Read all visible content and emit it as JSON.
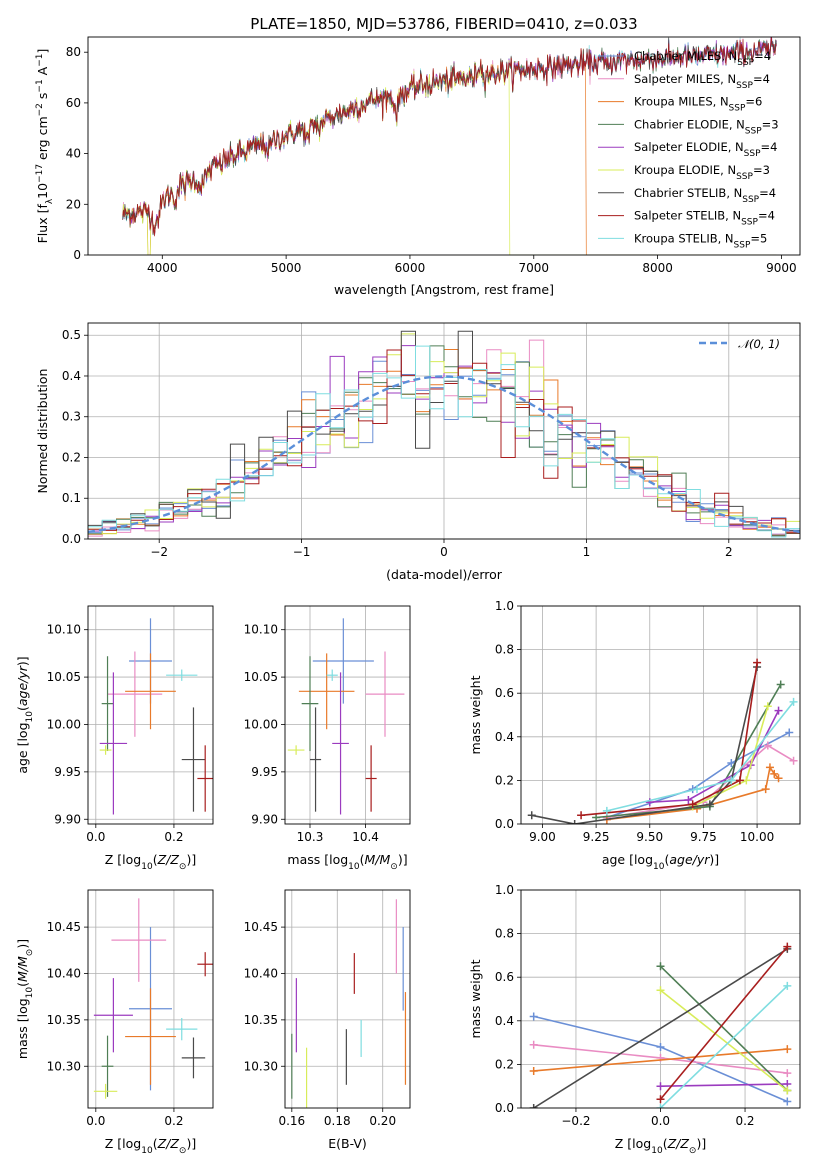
{
  "chart_data": [
    {
      "id": "spectrum",
      "type": "line",
      "title": "PLATE=1850, MJD=53786, FIBERID=0410, z=0.033",
      "xlabel": "wavelength [Angstrom, rest frame]",
      "ylabel": "Flux [f_λ10^-17 erg cm^-2 s^-1 A^-1]",
      "xlim": [
        3400,
        9150
      ],
      "ylim": [
        0,
        86
      ],
      "xticks": [
        4000,
        5000,
        6000,
        7000,
        8000,
        9000
      ],
      "yticks": [
        0,
        20,
        40,
        60,
        80
      ],
      "grid": false,
      "legend_placement": "top-right",
      "legend": [
        {
          "name": "Chabrier MILES, N_SSP=4",
          "color": "#6a8fd6"
        },
        {
          "name": "Salpeter MILES, N_SSP=4",
          "color": "#e98cc3"
        },
        {
          "name": "Kroupa MILES, N_SSP=6",
          "color": "#e87a2a"
        },
        {
          "name": "Chabrier ELODIE, N_SSP=3",
          "color": "#4f7e55"
        },
        {
          "name": "Salpeter ELODIE, N_SSP=4",
          "color": "#9b3bbf"
        },
        {
          "name": "Kroupa ELODIE, N_SSP=3",
          "color": "#d8ec5a"
        },
        {
          "name": "Chabrier STELIB, N_SSP=4",
          "color": "#4a4a4a"
        },
        {
          "name": "Salpeter STELIB, N_SSP=4",
          "color": "#a81e1e"
        },
        {
          "name": "Kroupa STELIB, N_SSP=5",
          "color": "#7fdde0"
        }
      ],
      "continuum": {
        "x": [
          3650,
          3900,
          4100,
          4300,
          4500,
          4700,
          4900,
          5100,
          5300,
          5500,
          5700,
          5900,
          6100,
          6300,
          6500,
          6700,
          6900,
          7100,
          7300,
          7500,
          7700,
          7900,
          8100,
          8300,
          8500,
          8700,
          8900
        ],
        "y": [
          16,
          17,
          26,
          31,
          37,
          42,
          45,
          49,
          53,
          57,
          61,
          63,
          67,
          69,
          70,
          72,
          73,
          74,
          75,
          76,
          77,
          77,
          78,
          78,
          79,
          80,
          81
        ]
      },
      "features": [
        {
          "series": "Kroupa ELODIE, N_SSP=3",
          "x_from": 3900,
          "x_to": 6800,
          "note": "spectrum ends at 6800 with drop to 0"
        },
        {
          "series": "Kroupa MILES, N_SSP=6",
          "x_from": 3900,
          "x_to": 7420,
          "note": "spectrum ends at 7420 with drop to 0"
        }
      ]
    },
    {
      "id": "residuals",
      "type": "step",
      "xlabel": "(data-model)/error",
      "ylabel": "Normed distribution",
      "xlim": [
        -2.5,
        2.5
      ],
      "ylim": [
        0,
        0.53
      ],
      "xticks": [
        -2,
        -1,
        0,
        1,
        2
      ],
      "yticks": [
        0.0,
        0.1,
        0.2,
        0.3,
        0.4,
        0.5
      ],
      "grid": true,
      "legend_placement": "top-right",
      "legend": [
        {
          "name": "𝒩(0, 1)",
          "color": "#5b8fd9"
        }
      ],
      "bin_width": 0.1,
      "model": "standard normal"
    },
    {
      "id": "age_vs_Z",
      "type": "errorbar",
      "xlabel": "Z [log10(Z/Z☉)]",
      "ylabel": "age  [log10(age/yr)]",
      "xlim": [
        -0.02,
        0.3
      ],
      "ylim": [
        9.895,
        10.125
      ],
      "xticks": [
        0.0,
        0.2
      ],
      "yticks": [
        9.9,
        9.95,
        10.0,
        10.05,
        10.1
      ],
      "grid": true,
      "points": [
        {
          "color": "#6a8fd6",
          "x": 0.14,
          "xerr": 0.055,
          "y": 10.067,
          "yerr": 0.045
        },
        {
          "color": "#e98cc3",
          "x": 0.1,
          "xerr": 0.07,
          "y": 10.032,
          "yerr": 0.045
        },
        {
          "color": "#e87a2a",
          "x": 0.14,
          "xerr": 0.065,
          "y": 10.035,
          "yerr": 0.04
        },
        {
          "color": "#4f7e55",
          "x": 0.03,
          "xerr": 0.015,
          "y": 10.022,
          "yerr": 0.05
        },
        {
          "color": "#9b3bbf",
          "x": 0.045,
          "xerr": 0.035,
          "y": 9.98,
          "yerr": 0.075
        },
        {
          "color": "#d8ec5a",
          "x": 0.025,
          "xerr": 0.015,
          "y": 9.973,
          "yerr": 0.005
        },
        {
          "color": "#4a4a4a",
          "x": 0.25,
          "xerr": 0.03,
          "y": 9.963,
          "yerr": 0.055
        },
        {
          "color": "#a81e1e",
          "x": 0.28,
          "xerr": 0.02,
          "y": 9.943,
          "yerr": 0.035
        },
        {
          "color": "#7fdde0",
          "x": 0.22,
          "xerr": 0.04,
          "y": 10.052,
          "yerr": 0.006
        }
      ]
    },
    {
      "id": "age_vs_mass",
      "type": "errorbar",
      "xlabel": "mass [log10(M/M☉)]",
      "ylabel": "",
      "xlim": [
        10.255,
        10.48
      ],
      "ylim": [
        9.895,
        10.125
      ],
      "xticks": [
        10.3,
        10.4
      ],
      "yticks": [
        9.9,
        9.95,
        10.0,
        10.05,
        10.1
      ],
      "grid": true,
      "points": [
        {
          "color": "#6a8fd6",
          "x": 10.36,
          "xerr": 0.055,
          "y": 10.067,
          "yerr": 0.045
        },
        {
          "color": "#e98cc3",
          "x": 10.435,
          "xerr": 0.035,
          "y": 10.032,
          "yerr": 0.045
        },
        {
          "color": "#e87a2a",
          "x": 10.33,
          "xerr": 0.05,
          "y": 10.035,
          "yerr": 0.04
        },
        {
          "color": "#4f7e55",
          "x": 10.3,
          "xerr": 0.015,
          "y": 10.022,
          "yerr": 0.05
        },
        {
          "color": "#9b3bbf",
          "x": 10.355,
          "xerr": 0.015,
          "y": 9.98,
          "yerr": 0.075
        },
        {
          "color": "#d8ec5a",
          "x": 10.275,
          "xerr": 0.015,
          "y": 9.973,
          "yerr": 0.005
        },
        {
          "color": "#4a4a4a",
          "x": 10.31,
          "xerr": 0.01,
          "y": 9.963,
          "yerr": 0.055
        },
        {
          "color": "#a81e1e",
          "x": 10.41,
          "xerr": 0.01,
          "y": 9.943,
          "yerr": 0.035
        },
        {
          "color": "#7fdde0",
          "x": 10.34,
          "xerr": 0.01,
          "y": 10.052,
          "yerr": 0.006
        }
      ]
    },
    {
      "id": "weight_vs_age",
      "type": "line",
      "xlabel": "age  [log10(age/yr)]",
      "ylabel": "mass weight",
      "xlim": [
        8.9,
        10.2
      ],
      "ylim": [
        0,
        1.0
      ],
      "xticks": [
        9.0,
        9.25,
        9.5,
        9.75,
        10.0
      ],
      "yticks": [
        0.0,
        0.2,
        0.4,
        0.6,
        0.8,
        1.0
      ],
      "grid": true,
      "series": [
        {
          "color": "#6a8fd6",
          "x": [
            9.3,
            9.7,
            9.88,
            10.15
          ],
          "y": [
            0.03,
            0.16,
            0.28,
            0.42
          ]
        },
        {
          "color": "#e98cc3",
          "x": [
            9.3,
            9.75,
            10.05,
            10.17
          ],
          "y": [
            0.03,
            0.1,
            0.36,
            0.29
          ]
        },
        {
          "color": "#e87a2a",
          "x": [
            9.3,
            9.72,
            10.04,
            10.06,
            10.08,
            10.1
          ],
          "y": [
            0.02,
            0.07,
            0.16,
            0.26,
            0.23,
            0.21
          ]
        },
        {
          "color": "#4f7e55",
          "x": [
            9.25,
            9.78,
            10.11
          ],
          "y": [
            0.03,
            0.08,
            0.64
          ]
        },
        {
          "color": "#9b3bbf",
          "x": [
            9.5,
            9.68,
            9.97,
            10.1
          ],
          "y": [
            0.1,
            0.11,
            0.27,
            0.52
          ]
        },
        {
          "color": "#d8ec5a",
          "x": [
            9.7,
            9.95,
            10.05
          ],
          "y": [
            0.08,
            0.2,
            0.54
          ]
        },
        {
          "color": "#4a4a4a",
          "x": [
            8.95,
            9.15,
            9.78,
            9.88,
            10.0
          ],
          "y": [
            0.04,
            0.0,
            0.09,
            0.2,
            0.72
          ]
        },
        {
          "color": "#a81e1e",
          "x": [
            9.18,
            9.7,
            9.92,
            10.0
          ],
          "y": [
            0.04,
            0.09,
            0.2,
            0.74
          ]
        },
        {
          "color": "#7fdde0",
          "x": [
            9.3,
            9.72,
            9.88,
            10.17
          ],
          "y": [
            0.06,
            0.16,
            0.2,
            0.56
          ]
        }
      ]
    },
    {
      "id": "mass_vs_Z",
      "type": "errorbar",
      "xlabel": "Z [log10(Z/Z☉)]",
      "ylabel": "mass [log10(M/M☉)]",
      "xlim": [
        -0.02,
        0.3
      ],
      "ylim": [
        10.255,
        10.49
      ],
      "xticks": [
        0.0,
        0.2
      ],
      "yticks": [
        10.3,
        10.35,
        10.4,
        10.45
      ],
      "grid": true,
      "points": [
        {
          "color": "#6a8fd6",
          "x": 0.14,
          "xerr": 0.055,
          "y": 10.362,
          "yerr": 0.088
        },
        {
          "color": "#e98cc3",
          "x": 0.11,
          "xerr": 0.07,
          "y": 10.436,
          "yerr": 0.045
        },
        {
          "color": "#e87a2a",
          "x": 0.14,
          "xerr": 0.065,
          "y": 10.332,
          "yerr": 0.052
        },
        {
          "color": "#4f7e55",
          "x": 0.03,
          "xerr": 0.015,
          "y": 10.3,
          "yerr": 0.033
        },
        {
          "color": "#9b3bbf",
          "x": 0.045,
          "xerr": 0.05,
          "y": 10.355,
          "yerr": 0.04
        },
        {
          "color": "#d8ec5a",
          "x": 0.025,
          "xerr": 0.03,
          "y": 10.273,
          "yerr": 0.008
        },
        {
          "color": "#4a4a4a",
          "x": 0.25,
          "xerr": 0.03,
          "y": 10.309,
          "yerr": 0.022
        },
        {
          "color": "#a81e1e",
          "x": 0.28,
          "xerr": 0.02,
          "y": 10.41,
          "yerr": 0.013
        },
        {
          "color": "#7fdde0",
          "x": 0.22,
          "xerr": 0.04,
          "y": 10.34,
          "yerr": 0.012
        }
      ]
    },
    {
      "id": "mass_vs_EBV",
      "type": "errorbar",
      "xlabel": "E(B-V)",
      "ylabel": "",
      "xlim": [
        0.157,
        0.212
      ],
      "ylim": [
        10.255,
        10.49
      ],
      "xticks": [
        0.16,
        0.18,
        0.2
      ],
      "yticks": [
        10.3,
        10.35,
        10.4,
        10.45
      ],
      "grid": true,
      "points": [
        {
          "color": "#6a8fd6",
          "x": 0.209,
          "y": 10.405,
          "yerr": 0.045
        },
        {
          "color": "#e98cc3",
          "x": 0.206,
          "y": 10.44,
          "yerr": 0.04
        },
        {
          "color": "#e87a2a",
          "x": 0.21,
          "y": 10.33,
          "yerr": 0.05
        },
        {
          "color": "#4f7e55",
          "x": 0.16,
          "y": 10.3,
          "yerr": 0.035
        },
        {
          "color": "#9b3bbf",
          "x": 0.162,
          "y": 10.355,
          "yerr": 0.04
        },
        {
          "color": "#d8ec5a",
          "x": 0.1665,
          "y": 10.27,
          "yerr": 0.05
        },
        {
          "color": "#4a4a4a",
          "x": 0.184,
          "y": 10.31,
          "yerr": 0.03
        },
        {
          "color": "#a81e1e",
          "x": 0.1875,
          "y": 10.4,
          "yerr": 0.022
        },
        {
          "color": "#7fdde0",
          "x": 0.1905,
          "y": 10.33,
          "yerr": 0.02
        }
      ]
    },
    {
      "id": "weight_vs_Z",
      "type": "line",
      "xlabel": "Z [log10(Z/Z☉)]",
      "ylabel": "mass weight",
      "xlim": [
        -0.33,
        0.33
      ],
      "ylim": [
        0,
        1.0
      ],
      "xticks": [
        -0.2,
        0.0,
        0.2
      ],
      "yticks": [
        0.0,
        0.2,
        0.4,
        0.6,
        0.8,
        1.0
      ],
      "grid": true,
      "series": [
        {
          "color": "#6a8fd6",
          "x": [
            -0.3,
            0.0,
            0.3
          ],
          "y": [
            0.42,
            0.28,
            0.03
          ]
        },
        {
          "color": "#e98cc3",
          "x": [
            -0.3,
            0.0,
            0.3
          ],
          "y": [
            0.29,
            0.23,
            0.16
          ]
        },
        {
          "color": "#e87a2a",
          "x": [
            -0.3,
            0.3
          ],
          "y": [
            0.17,
            0.27
          ]
        },
        {
          "color": "#4f7e55",
          "x": [
            0.0,
            0.3
          ],
          "y": [
            0.65,
            0.08
          ]
        },
        {
          "color": "#9b3bbf",
          "x": [
            0.0,
            0.3
          ],
          "y": [
            0.1,
            0.11
          ]
        },
        {
          "color": "#d8ec5a",
          "x": [
            0.0,
            0.3
          ],
          "y": [
            0.54,
            0.08
          ]
        },
        {
          "color": "#4a4a4a",
          "x": [
            -0.3,
            0.3
          ],
          "y": [
            0.0,
            0.73
          ]
        },
        {
          "color": "#a81e1e",
          "x": [
            0.0,
            0.3
          ],
          "y": [
            0.04,
            0.74
          ]
        },
        {
          "color": "#7fdde0",
          "x": [
            0.0,
            0.3
          ],
          "y": [
            0.0,
            0.56
          ]
        }
      ]
    }
  ]
}
